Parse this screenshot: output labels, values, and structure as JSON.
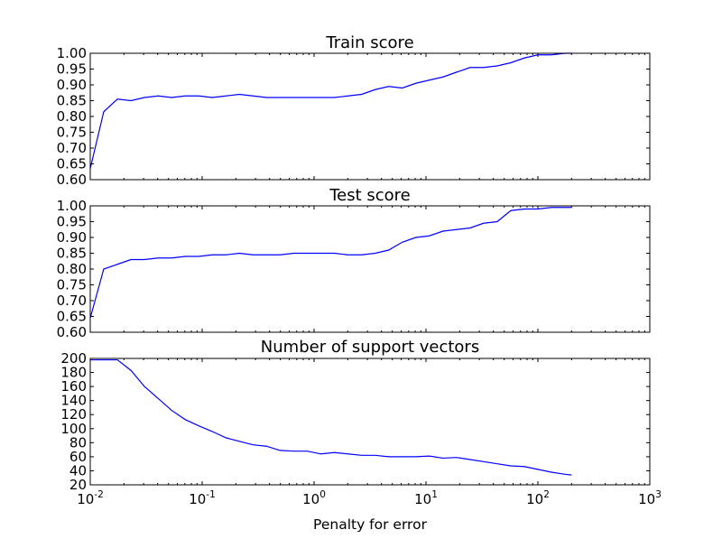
{
  "xlabel": "Penalty for error",
  "x_tick_labels": [
    {
      "base": "10",
      "exp": "-2"
    },
    {
      "base": "10",
      "exp": "-1"
    },
    {
      "base": "10",
      "exp": "0"
    },
    {
      "base": "10",
      "exp": "1"
    },
    {
      "base": "10",
      "exp": "2"
    },
    {
      "base": "10",
      "exp": "3"
    }
  ],
  "chart_data": [
    {
      "type": "line",
      "title": "Train score",
      "xscale": "log",
      "xlim": [
        0.01,
        1000
      ],
      "ylim": [
        0.6,
        1.0
      ],
      "yticks": [
        "0.60",
        "0.65",
        "0.70",
        "0.75",
        "0.80",
        "0.85",
        "0.90",
        "0.95",
        "1.00"
      ],
      "color": "#0000ff",
      "x": [
        0.01,
        0.0132,
        0.0175,
        0.0231,
        0.0305,
        0.0404,
        0.0534,
        0.0705,
        0.0933,
        0.123,
        0.163,
        0.215,
        0.285,
        0.376,
        0.497,
        0.658,
        0.869,
        1.15,
        1.52,
        2.01,
        2.66,
        3.51,
        4.64,
        6.14,
        8.11,
        10.7,
        14.2,
        18.7,
        24.8,
        32.7,
        43.3,
        57.2,
        75.6,
        99.9,
        132,
        175,
        200
      ],
      "y": [
        0.635,
        0.815,
        0.855,
        0.85,
        0.86,
        0.865,
        0.86,
        0.865,
        0.865,
        0.86,
        0.865,
        0.87,
        0.865,
        0.86,
        0.86,
        0.86,
        0.86,
        0.86,
        0.86,
        0.865,
        0.87,
        0.885,
        0.895,
        0.89,
        0.905,
        0.915,
        0.925,
        0.94,
        0.955,
        0.955,
        0.96,
        0.97,
        0.985,
        0.995,
        0.995,
        1.0,
        1.0
      ]
    },
    {
      "type": "line",
      "title": "Test score",
      "xscale": "log",
      "xlim": [
        0.01,
        1000
      ],
      "ylim": [
        0.6,
        1.0
      ],
      "yticks": [
        "0.60",
        "0.65",
        "0.70",
        "0.75",
        "0.80",
        "0.85",
        "0.90",
        "0.95",
        "1.00"
      ],
      "color": "#0000ff",
      "x": [
        0.01,
        0.0132,
        0.0175,
        0.0231,
        0.0305,
        0.0404,
        0.0534,
        0.0705,
        0.0933,
        0.123,
        0.163,
        0.215,
        0.285,
        0.376,
        0.497,
        0.658,
        0.869,
        1.15,
        1.52,
        2.01,
        2.66,
        3.51,
        4.64,
        6.14,
        8.11,
        10.7,
        14.2,
        18.7,
        24.8,
        32.7,
        43.3,
        57.2,
        75.6,
        99.9,
        132,
        175,
        200
      ],
      "y": [
        0.645,
        0.8,
        0.815,
        0.83,
        0.83,
        0.835,
        0.835,
        0.84,
        0.84,
        0.845,
        0.845,
        0.85,
        0.845,
        0.845,
        0.845,
        0.85,
        0.85,
        0.85,
        0.85,
        0.845,
        0.845,
        0.85,
        0.86,
        0.885,
        0.9,
        0.905,
        0.92,
        0.925,
        0.93,
        0.945,
        0.95,
        0.985,
        0.99,
        0.99,
        0.995,
        0.995,
        0.995
      ]
    },
    {
      "type": "line",
      "title": "Number of support vectors",
      "xscale": "log",
      "xlim": [
        0.01,
        1000
      ],
      "ylim": [
        20,
        200
      ],
      "yticks": [
        "20",
        "40",
        "60",
        "80",
        "100",
        "120",
        "140",
        "160",
        "180",
        "200"
      ],
      "color": "#0000ff",
      "x": [
        0.01,
        0.0132,
        0.0175,
        0.0231,
        0.0305,
        0.0404,
        0.0534,
        0.0705,
        0.0933,
        0.123,
        0.163,
        0.215,
        0.285,
        0.376,
        0.497,
        0.658,
        0.869,
        1.15,
        1.52,
        2.01,
        2.66,
        3.51,
        4.64,
        6.14,
        8.11,
        10.7,
        14.2,
        18.7,
        24.8,
        32.7,
        43.3,
        57.2,
        75.6,
        99.9,
        132,
        175,
        200
      ],
      "y": [
        198,
        198,
        198,
        183,
        160,
        143,
        126,
        113,
        104,
        96,
        87,
        82,
        77,
        75,
        69,
        68,
        68,
        64,
        66,
        64,
        62,
        62,
        60,
        60,
        60,
        61,
        58,
        59,
        56,
        53,
        50,
        47,
        46,
        42,
        38,
        35,
        34
      ]
    }
  ]
}
